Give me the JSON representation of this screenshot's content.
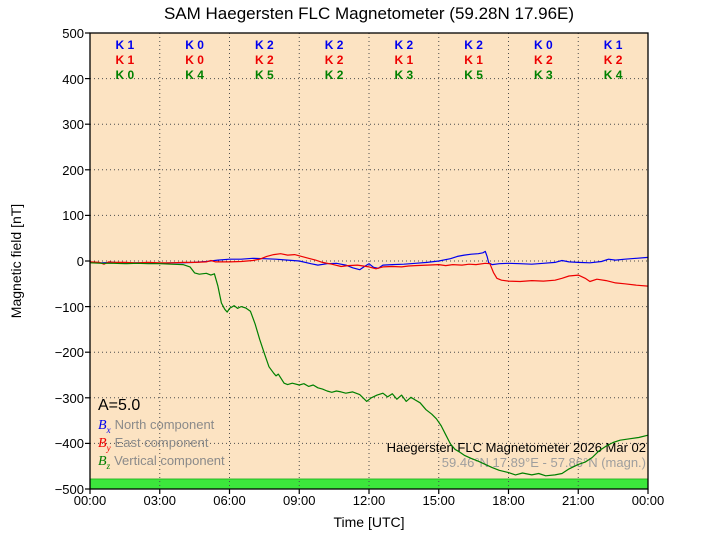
{
  "title": "SAM Haegersten FLC Magnetometer (59.28N 17.96E)",
  "axes": {
    "ylabel": "Magnetic field [nT]",
    "xlabel": "Time [UTC]",
    "y_tick_values": [
      500,
      400,
      300,
      200,
      100,
      0,
      -100,
      -200,
      -300,
      -400,
      -500
    ],
    "y_tick_labels": [
      "500",
      "400",
      "300",
      "200",
      "100",
      "0",
      "−100",
      "−200",
      "−300",
      "−400",
      "−500"
    ],
    "x_tick_hours": [
      0,
      3,
      6,
      9,
      12,
      15,
      18,
      21,
      24
    ],
    "x_tick_labels": [
      "00:00",
      "03:00",
      "06:00",
      "09:00",
      "12:00",
      "15:00",
      "18:00",
      "21:00",
      "00:00"
    ],
    "ylim": [
      -500,
      500
    ],
    "xlim_hours": [
      0,
      24
    ],
    "grid": true
  },
  "k_index": {
    "rows": [
      {
        "component": "Bx",
        "color": "#0000ee",
        "values": [
          "K 1",
          "K 0",
          "K 2",
          "K 2",
          "K 2",
          "K 2",
          "K 0",
          "K 1"
        ]
      },
      {
        "component": "By",
        "color": "#ee0000",
        "values": [
          "K 1",
          "K 0",
          "K 2",
          "K 2",
          "K 1",
          "K 1",
          "K 2",
          "K 2"
        ]
      },
      {
        "component": "Bz",
        "color": "#008000",
        "values": [
          "K 0",
          "K 4",
          "K 5",
          "K 2",
          "K 3",
          "K 5",
          "K 3",
          "K 4"
        ]
      }
    ]
  },
  "legend": {
    "a_index": "A=5.0",
    "entries": [
      {
        "symbol": "B",
        "sub": "x",
        "color": "#0000ee",
        "label": "North component"
      },
      {
        "symbol": "B",
        "sub": "y",
        "color": "#ee0000",
        "label": "East component"
      },
      {
        "symbol": "B",
        "sub": "z",
        "color": "#008000",
        "label": "Vertical component"
      }
    ]
  },
  "annotations": {
    "station_line": "Haegersten FLC Magnetometer 2026 Mar 02",
    "coords_line": "59.46°N 17.89°E - 57.86°N (magn.)"
  },
  "colors": {
    "plot_bg": "#FCE3C2",
    "coverage_bar": "#3CE63C",
    "coverage_bar_edge": "#1fae1f",
    "grid": "#4d4d4d",
    "frame": "#000000",
    "legend_text": "#8a8a8a",
    "coords_text": "#9e9e9e"
  },
  "chart_data": {
    "type": "line",
    "title": "SAM Haegersten FLC Magnetometer (59.28N 17.96E)",
    "xlabel": "Time [UTC]",
    "ylabel": "Magnetic field [nT]",
    "xlim_hours": [
      0,
      24
    ],
    "ylim": [
      -500,
      500
    ],
    "grid": true,
    "legend_position": "lower left",
    "series": [
      {
        "id": "bx",
        "name": "Bx North component",
        "color": "#0000ee",
        "points": [
          [
            0,
            -3
          ],
          [
            0.5,
            -4
          ],
          [
            1,
            -3
          ],
          [
            1.5,
            -5
          ],
          [
            2,
            -4
          ],
          [
            2.5,
            -4
          ],
          [
            3,
            -5
          ],
          [
            3.5,
            -4
          ],
          [
            4,
            -4
          ],
          [
            4.5,
            -3
          ],
          [
            5,
            -1
          ],
          [
            5.5,
            2
          ],
          [
            6,
            4
          ],
          [
            6.5,
            4
          ],
          [
            7,
            6
          ],
          [
            7.5,
            5
          ],
          [
            8,
            4
          ],
          [
            8.5,
            2
          ],
          [
            9,
            0
          ],
          [
            9.5,
            -6
          ],
          [
            9.8,
            -9
          ],
          [
            10.2,
            -6
          ],
          [
            10.6,
            -5
          ],
          [
            11,
            -9
          ],
          [
            11.3,
            -15
          ],
          [
            11.6,
            -19
          ],
          [
            11.8,
            -12
          ],
          [
            12,
            -6
          ],
          [
            12.2,
            -14
          ],
          [
            12.4,
            -16
          ],
          [
            12.6,
            -9
          ],
          [
            13,
            -8
          ],
          [
            13.5,
            -7
          ],
          [
            14,
            -5
          ],
          [
            14.5,
            -3
          ],
          [
            15,
            0
          ],
          [
            15.5,
            5
          ],
          [
            15.8,
            10
          ],
          [
            16.1,
            13
          ],
          [
            16.4,
            15
          ],
          [
            16.7,
            16
          ],
          [
            16.9,
            18
          ],
          [
            17,
            21
          ],
          [
            17.08,
            10
          ],
          [
            17.15,
            -4
          ],
          [
            17.3,
            -8
          ],
          [
            17.6,
            -6
          ],
          [
            18,
            -5
          ],
          [
            18.5,
            -6
          ],
          [
            19,
            -7
          ],
          [
            19.5,
            -5
          ],
          [
            20,
            -3
          ],
          [
            20.3,
            1
          ],
          [
            20.6,
            -2
          ],
          [
            21,
            -3
          ],
          [
            21.5,
            -4
          ],
          [
            22,
            -1
          ],
          [
            22.3,
            4
          ],
          [
            22.6,
            2
          ],
          [
            23,
            4
          ],
          [
            23.5,
            6
          ],
          [
            24,
            8
          ]
        ]
      },
      {
        "id": "by",
        "name": "By East component",
        "color": "#ee0000",
        "points": [
          [
            0,
            -2
          ],
          [
            0.4,
            -3
          ],
          [
            0.6,
            -7
          ],
          [
            0.8,
            -2
          ],
          [
            1,
            -3
          ],
          [
            1.5,
            -3
          ],
          [
            2,
            -4
          ],
          [
            2.5,
            -3
          ],
          [
            3,
            -4
          ],
          [
            3.5,
            -4
          ],
          [
            4,
            -3
          ],
          [
            4.5,
            -3
          ],
          [
            5,
            -2
          ],
          [
            5.2,
            1
          ],
          [
            5.4,
            -2
          ],
          [
            6,
            -2
          ],
          [
            6.5,
            -1
          ],
          [
            7,
            1
          ],
          [
            7.3,
            4
          ],
          [
            7.6,
            10
          ],
          [
            7.9,
            14
          ],
          [
            8.2,
            16
          ],
          [
            8.5,
            13
          ],
          [
            8.8,
            14
          ],
          [
            9.1,
            10
          ],
          [
            9.4,
            6
          ],
          [
            9.7,
            2
          ],
          [
            10,
            -3
          ],
          [
            10.4,
            -7
          ],
          [
            10.8,
            -12
          ],
          [
            11.1,
            -10
          ],
          [
            11.5,
            -9
          ],
          [
            12,
            -13
          ],
          [
            12.3,
            -17
          ],
          [
            12.6,
            -13
          ],
          [
            13,
            -12
          ],
          [
            13.4,
            -13
          ],
          [
            13.7,
            -11
          ],
          [
            14,
            -10
          ],
          [
            14.5,
            -9
          ],
          [
            15,
            -8
          ],
          [
            15.3,
            -10
          ],
          [
            15.6,
            -8
          ],
          [
            16,
            -9
          ],
          [
            16.3,
            -7
          ],
          [
            16.6,
            -8
          ],
          [
            17,
            -5
          ],
          [
            17.2,
            -6
          ],
          [
            17.35,
            -25
          ],
          [
            17.5,
            -38
          ],
          [
            17.7,
            -42
          ],
          [
            18,
            -44
          ],
          [
            18.5,
            -45
          ],
          [
            19,
            -43
          ],
          [
            19.5,
            -44
          ],
          [
            20,
            -42
          ],
          [
            20.3,
            -38
          ],
          [
            20.6,
            -33
          ],
          [
            21,
            -31
          ],
          [
            21.3,
            -38
          ],
          [
            21.5,
            -45
          ],
          [
            21.8,
            -40
          ],
          [
            22.2,
            -43
          ],
          [
            22.6,
            -48
          ],
          [
            23,
            -50
          ],
          [
            23.5,
            -53
          ],
          [
            24,
            -55
          ]
        ]
      },
      {
        "id": "bz",
        "name": "Bz Vertical component",
        "color": "#008000",
        "points": [
          [
            0,
            -4
          ],
          [
            0.5,
            -5
          ],
          [
            1,
            -5
          ],
          [
            1.5,
            -6
          ],
          [
            2,
            -5
          ],
          [
            2.5,
            -6
          ],
          [
            3,
            -6
          ],
          [
            3.5,
            -7
          ],
          [
            4,
            -8
          ],
          [
            4.3,
            -13
          ],
          [
            4.5,
            -26
          ],
          [
            4.7,
            -29
          ],
          [
            5,
            -27
          ],
          [
            5.2,
            -31
          ],
          [
            5.35,
            -28
          ],
          [
            5.5,
            -55
          ],
          [
            5.65,
            -92
          ],
          [
            5.8,
            -106
          ],
          [
            5.9,
            -112
          ],
          [
            6,
            -104
          ],
          [
            6.2,
            -98
          ],
          [
            6.35,
            -104
          ],
          [
            6.5,
            -100
          ],
          [
            6.7,
            -103
          ],
          [
            6.9,
            -110
          ],
          [
            7.1,
            -138
          ],
          [
            7.3,
            -172
          ],
          [
            7.5,
            -203
          ],
          [
            7.7,
            -232
          ],
          [
            7.9,
            -246
          ],
          [
            8,
            -252
          ],
          [
            8.1,
            -248
          ],
          [
            8.2,
            -256
          ],
          [
            8.35,
            -268
          ],
          [
            8.5,
            -271
          ],
          [
            8.7,
            -268
          ],
          [
            9,
            -272
          ],
          [
            9.2,
            -269
          ],
          [
            9.4,
            -275
          ],
          [
            9.6,
            -272
          ],
          [
            9.8,
            -278
          ],
          [
            10,
            -281
          ],
          [
            10.2,
            -285
          ],
          [
            10.4,
            -288
          ],
          [
            10.6,
            -285
          ],
          [
            10.8,
            -287
          ],
          [
            11,
            -290
          ],
          [
            11.3,
            -287
          ],
          [
            11.6,
            -293
          ],
          [
            11.9,
            -308
          ],
          [
            12.1,
            -300
          ],
          [
            12.35,
            -294
          ],
          [
            12.6,
            -290
          ],
          [
            12.8,
            -298
          ],
          [
            13,
            -291
          ],
          [
            13.2,
            -303
          ],
          [
            13.4,
            -294
          ],
          [
            13.6,
            -308
          ],
          [
            13.8,
            -299
          ],
          [
            14,
            -305
          ],
          [
            14.2,
            -311
          ],
          [
            14.45,
            -326
          ],
          [
            14.7,
            -336
          ],
          [
            14.9,
            -346
          ],
          [
            15.1,
            -361
          ],
          [
            15.3,
            -381
          ],
          [
            15.5,
            -401
          ],
          [
            15.7,
            -413
          ],
          [
            15.9,
            -419
          ],
          [
            16.1,
            -426
          ],
          [
            16.4,
            -433
          ],
          [
            16.7,
            -439
          ],
          [
            17,
            -446
          ],
          [
            17.3,
            -453
          ],
          [
            17.6,
            -459
          ],
          [
            18,
            -464
          ],
          [
            18.3,
            -469
          ],
          [
            18.6,
            -465
          ],
          [
            19,
            -469
          ],
          [
            19.3,
            -466
          ],
          [
            19.6,
            -471
          ],
          [
            20,
            -469
          ],
          [
            20.3,
            -466
          ],
          [
            20.6,
            -456
          ],
          [
            21,
            -446
          ],
          [
            21.3,
            -441
          ],
          [
            21.6,
            -431
          ],
          [
            21.9,
            -416
          ],
          [
            22.2,
            -406
          ],
          [
            22.5,
            -398
          ],
          [
            22.8,
            -393
          ],
          [
            23.2,
            -390
          ],
          [
            23.6,
            -387
          ],
          [
            24,
            -382
          ]
        ]
      }
    ],
    "coverage_bar": {
      "from_hour": 0,
      "to_hour": 24,
      "value_range": [
        -500,
        -478
      ]
    }
  }
}
